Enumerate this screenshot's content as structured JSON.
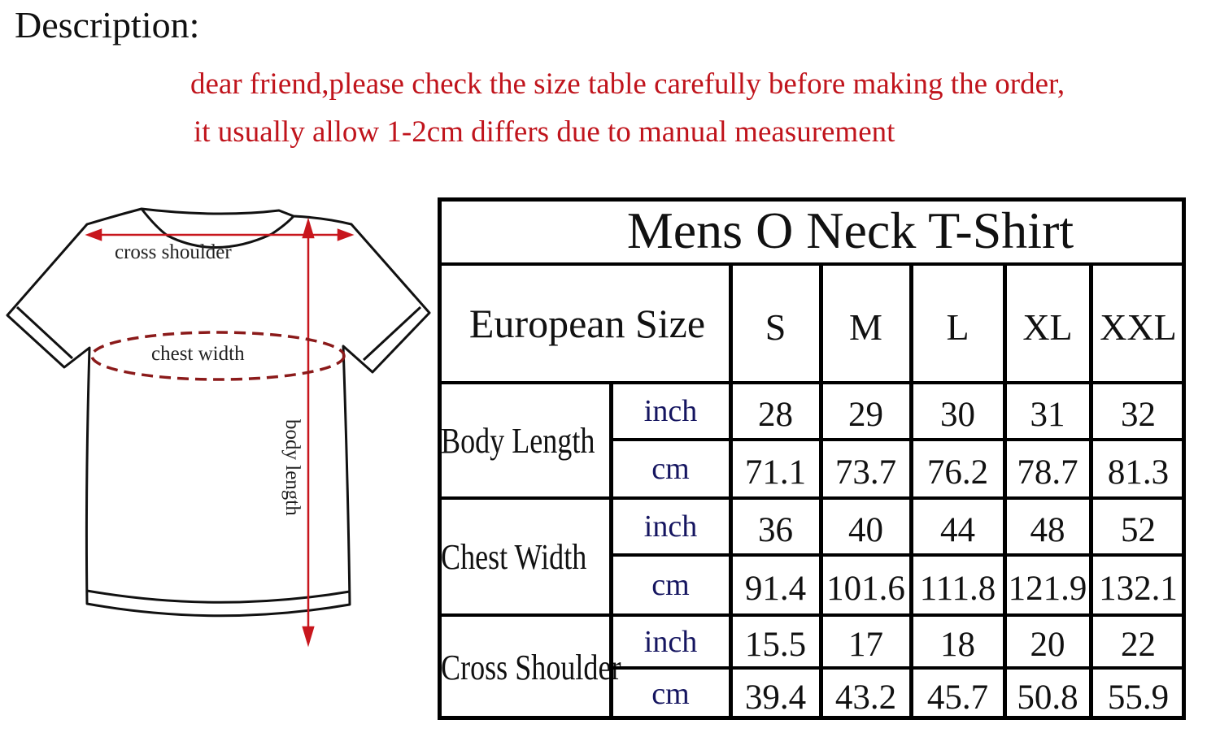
{
  "description_heading": "Description:",
  "notes": [
    "dear  friend,please check the size table carefully before making the order,",
    "it usually allow 1-2cm differs due to manual measurement"
  ],
  "diagram": {
    "labels": {
      "cross_shoulder": "cross shoulder",
      "chest_width": "chest width",
      "body_length": "body length"
    },
    "colors": {
      "arrow": "#c8161d",
      "chest_dash": "#8b1a1a",
      "outline": "#111111"
    }
  },
  "table": {
    "title": "Mens O Neck T-Shirt",
    "size_header": "European Size",
    "sizes": [
      "S",
      "M",
      "L",
      "XL",
      "XXL"
    ],
    "rows": [
      {
        "label": "Body Length",
        "units": [
          {
            "unit": "inch",
            "values": [
              "28",
              "29",
              "30",
              "31",
              "32"
            ]
          },
          {
            "unit": "cm",
            "values": [
              "71.1",
              "73.7",
              "76.2",
              "78.7",
              "81.3"
            ]
          }
        ]
      },
      {
        "label": "Chest Width",
        "units": [
          {
            "unit": "inch",
            "values": [
              "36",
              "40",
              "44",
              "48",
              "52"
            ]
          },
          {
            "unit": "cm",
            "values": [
              "91.4",
              "101.6",
              "111.8",
              "121.9",
              "132.1"
            ]
          }
        ]
      },
      {
        "label": "Cross Shoulder",
        "units": [
          {
            "unit": "inch",
            "values": [
              "15.5",
              "17",
              "18",
              "20",
              "22"
            ]
          },
          {
            "unit": "cm",
            "values": [
              "39.4",
              "43.2",
              "45.7",
              "50.8",
              "55.9"
            ]
          }
        ]
      }
    ]
  },
  "colors": {
    "note_text": "#c0141c",
    "unit_text": "#151560",
    "border": "#000000"
  }
}
